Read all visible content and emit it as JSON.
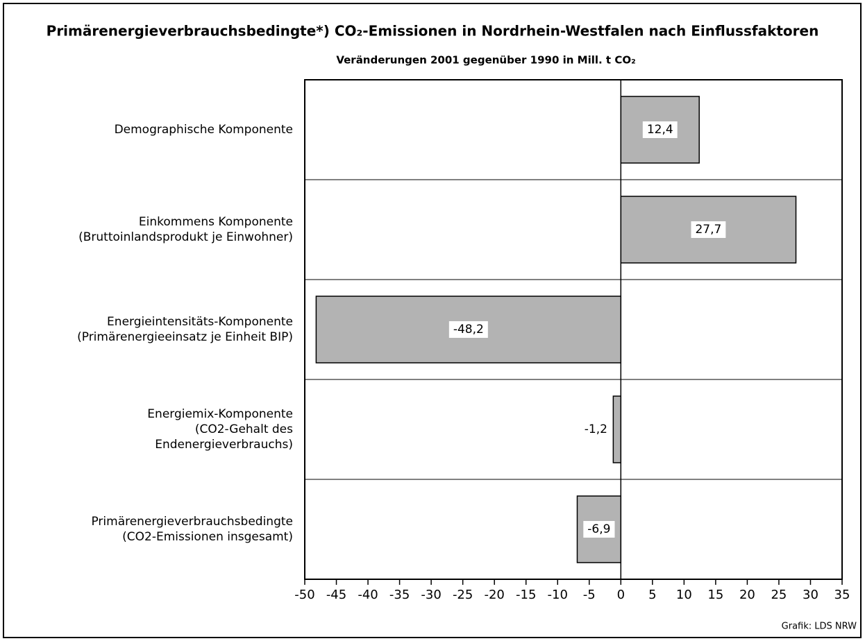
{
  "chart_data": {
    "type": "hbar",
    "title": "Primärenergieverbrauchsbedingte*) CO₂-Emissionen in Nordrhein-Westfalen nach Einflussfaktoren",
    "subtitle": "Veränderungen 2001 gegenüber 1990 in Mill. t CO₂",
    "categories": [
      [
        "Demographische Komponente"
      ],
      [
        "Einkommens Komponente",
        "(Bruttoinlandsprodukt je Einwohner)"
      ],
      [
        "Energieintensitäts-Komponente",
        "(Primärenergieeinsatz je Einheit BIP)"
      ],
      [
        "Energiemix-Komponente",
        "(CO2-Gehalt des",
        "Endenergieverbrauchs)"
      ],
      [
        "Primärenergieverbrauchsbedingte",
        "(CO2-Emissionen insgesamt)"
      ]
    ],
    "values": [
      12.4,
      27.7,
      -48.2,
      -1.2,
      -6.9
    ],
    "value_labels": [
      "12,4",
      "27,7",
      "-48,2",
      "-1,2",
      "-6,9"
    ],
    "color": "#b3b3b3",
    "xlim": [
      -50,
      35
    ],
    "xticks": [
      -50,
      -45,
      -40,
      -35,
      -30,
      -25,
      -20,
      -15,
      -10,
      -5,
      0,
      5,
      10,
      15,
      20,
      25,
      30,
      35
    ],
    "source": "Grafik: LDS NRW"
  }
}
